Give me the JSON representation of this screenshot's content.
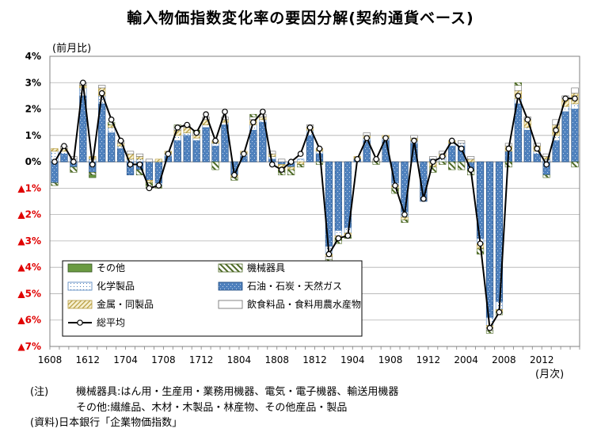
{
  "chart_data": {
    "type": "bar",
    "title": "輸入物価指数変化率の要因分解(契約通貨ベース)",
    "ylabel": "(前月比)",
    "xlabel": "(月次)",
    "ylim": [
      -7,
      4
    ],
    "y_ticks": [
      {
        "value": 4,
        "label": "4%",
        "color": "#000000"
      },
      {
        "value": 3,
        "label": "3%",
        "color": "#000000"
      },
      {
        "value": 2,
        "label": "2%",
        "color": "#000000"
      },
      {
        "value": 1,
        "label": "1%",
        "color": "#000000"
      },
      {
        "value": 0,
        "label": "0%",
        "color": "#000000"
      },
      {
        "value": -1,
        "label": "▲1%",
        "color": "#e00000"
      },
      {
        "value": -2,
        "label": "▲2%",
        "color": "#e00000"
      },
      {
        "value": -3,
        "label": "▲3%",
        "color": "#e00000"
      },
      {
        "value": -4,
        "label": "▲4%",
        "color": "#e00000"
      },
      {
        "value": -5,
        "label": "▲5%",
        "color": "#e00000"
      },
      {
        "value": -6,
        "label": "▲6%",
        "color": "#e00000"
      },
      {
        "value": -7,
        "label": "▲7%",
        "color": "#e00000"
      }
    ],
    "x_tick_labels": [
      {
        "index": 0,
        "label": "1608"
      },
      {
        "index": 4,
        "label": "1612"
      },
      {
        "index": 8,
        "label": "1704"
      },
      {
        "index": 12,
        "label": "1708"
      },
      {
        "index": 16,
        "label": "1712"
      },
      {
        "index": 20,
        "label": "1804"
      },
      {
        "index": 24,
        "label": "1808"
      },
      {
        "index": 28,
        "label": "1812"
      },
      {
        "index": 32,
        "label": "1904"
      },
      {
        "index": 36,
        "label": "1908"
      },
      {
        "index": 40,
        "label": "1912"
      },
      {
        "index": 44,
        "label": "2004"
      },
      {
        "index": 48,
        "label": "2008"
      },
      {
        "index": 52,
        "label": "2012"
      }
    ],
    "period_start": "2016-08",
    "grid": true,
    "legend": {
      "placement": "bottom-left",
      "items": [
        {
          "name": "その他",
          "series": "other"
        },
        {
          "name": "機械器具",
          "series": "machinery"
        },
        {
          "name": "化学製品",
          "series": "chemicals"
        },
        {
          "name": "石油・石炭・天然ガス",
          "series": "energy"
        },
        {
          "name": "金属・同製品",
          "series": "metals"
        },
        {
          "name": "飲食料品・食料用農水産物",
          "series": "food"
        },
        {
          "name": "総平均",
          "series": "total"
        }
      ]
    },
    "series_styles": {
      "energy": {
        "fill": "#4f81bd",
        "stroke": "#1f497d"
      },
      "chemicals": {
        "fill": "#ffffff",
        "stroke": "#4f81bd"
      },
      "metals": {
        "fill": "#f5edc8",
        "stroke": "#b59a3c"
      },
      "food": {
        "fill": "#ffffff",
        "stroke": "#666666"
      },
      "machinery": {
        "fill": "#d4dec0",
        "stroke": "#4e6a26"
      },
      "other": {
        "fill": "#6a9a42",
        "stroke": "#375623"
      },
      "total": {
        "line": "#000000",
        "marker_fill": "#ffffff"
      }
    },
    "series": [
      {
        "name": "石油・石炭・天然ガス",
        "key": "energy",
        "values": [
          -0.8,
          0.3,
          -0.2,
          2.5,
          -0.4,
          2.2,
          1.1,
          0.5,
          -0.5,
          -0.3,
          -0.7,
          -0.8,
          0.2,
          0.8,
          1.0,
          0.8,
          1.3,
          0.6,
          1.4,
          -0.5,
          0.2,
          1.2,
          1.5,
          0.1,
          -0.1,
          -0.2,
          0.0,
          1.0,
          0.3,
          -3.2,
          -2.6,
          -2.5,
          0.1,
          0.8,
          0.0,
          0.8,
          -0.8,
          -1.9,
          0.7,
          -1.5,
          0.1,
          0.0,
          0.6,
          0.6,
          -0.3,
          -2.9,
          -5.9,
          -5.3,
          0.4,
          2.2,
          1.2,
          0.3,
          -0.5,
          0.8,
          1.9,
          2.0
        ]
      },
      {
        "name": "化学製品",
        "key": "chemicals",
        "values": [
          0.4,
          0.1,
          0.1,
          0.3,
          0.1,
          0.3,
          0.2,
          0.1,
          0.1,
          0.1,
          0.0,
          -0.1,
          0.1,
          0.2,
          0.1,
          0.1,
          0.1,
          0.1,
          0.1,
          0.0,
          0.1,
          0.2,
          0.1,
          0.1,
          0.0,
          0.0,
          0.1,
          0.2,
          0.1,
          -0.3,
          -0.2,
          -0.2,
          0.0,
          0.1,
          0.0,
          0.1,
          -0.1,
          -0.2,
          0.1,
          0.0,
          0.0,
          0.2,
          0.1,
          0.1,
          0.0,
          -0.2,
          -0.3,
          -0.3,
          0.0,
          0.2,
          0.1,
          0.1,
          0.1,
          0.2,
          0.2,
          0.2
        ]
      },
      {
        "name": "金属・同製品",
        "key": "metals",
        "values": [
          0.1,
          0.1,
          0.0,
          0.1,
          0.1,
          0.3,
          0.1,
          0.1,
          0.2,
          0.1,
          -0.1,
          0.1,
          0.1,
          0.2,
          0.2,
          0.1,
          0.2,
          0.1,
          0.1,
          -0.1,
          0.1,
          0.2,
          0.1,
          0.1,
          -0.2,
          -0.1,
          -0.1,
          0.1,
          0.1,
          -0.1,
          -0.1,
          -0.1,
          0.1,
          0.1,
          0.0,
          0.1,
          -0.1,
          -0.1,
          0.1,
          0.0,
          -0.2,
          0.1,
          0.1,
          0.0,
          0.1,
          -0.2,
          -0.1,
          -0.1,
          0.2,
          0.3,
          0.3,
          0.2,
          0.1,
          0.4,
          0.3,
          0.4
        ]
      },
      {
        "name": "飲食料品・食料用農水産物",
        "key": "food",
        "values": [
          0.0,
          0.1,
          0.1,
          0.1,
          0.0,
          0.1,
          0.0,
          0.1,
          0.1,
          0.1,
          0.1,
          0.0,
          0.0,
          0.1,
          0.1,
          0.1,
          0.1,
          0.0,
          0.1,
          0.0,
          0.0,
          0.1,
          0.1,
          0.1,
          0.1,
          0.0,
          0.0,
          0.1,
          0.0,
          -0.1,
          0.0,
          0.0,
          0.0,
          0.1,
          0.1,
          0.0,
          0.0,
          0.0,
          0.1,
          0.0,
          0.1,
          0.1,
          0.0,
          0.1,
          0.1,
          0.0,
          -0.1,
          0.0,
          0.1,
          0.2,
          0.1,
          0.1,
          0.1,
          0.2,
          0.1,
          0.2
        ]
      },
      {
        "name": "機械器具",
        "key": "machinery",
        "values": [
          -0.1,
          0.0,
          -0.2,
          0.0,
          -0.1,
          0.0,
          0.1,
          0.0,
          0.0,
          -0.2,
          -0.2,
          -0.1,
          0.0,
          0.1,
          0.0,
          0.1,
          0.0,
          -0.3,
          0.0,
          -0.1,
          0.0,
          0.1,
          0.0,
          0.0,
          -0.2,
          -0.2,
          -0.1,
          0.0,
          -0.1,
          -0.1,
          -0.2,
          -0.1,
          0.0,
          0.0,
          -0.1,
          0.0,
          -0.2,
          -0.1,
          0.0,
          0.0,
          -0.2,
          -0.1,
          -0.3,
          -0.3,
          -0.2,
          -0.2,
          -0.1,
          -0.1,
          -0.2,
          0.1,
          0.0,
          0.0,
          -0.1,
          0.0,
          0.0,
          -0.2
        ]
      },
      {
        "name": "その他",
        "key": "other",
        "values": [
          0.0,
          0.0,
          0.0,
          0.0,
          -0.1,
          0.0,
          0.0,
          0.0,
          0.0,
          0.0,
          0.0,
          0.0,
          0.0,
          0.0,
          0.0,
          0.0,
          0.0,
          0.0,
          0.0,
          0.0,
          0.0,
          0.0,
          0.0,
          0.0,
          0.0,
          0.0,
          0.0,
          0.0,
          0.0,
          0.0,
          0.0,
          0.0,
          0.0,
          0.0,
          0.0,
          0.0,
          0.0,
          0.0,
          0.0,
          0.0,
          0.0,
          0.0,
          0.0,
          0.0,
          0.0,
          0.0,
          0.0,
          0.0,
          0.0,
          0.0,
          0.0,
          0.0,
          0.0,
          0.0,
          0.0,
          0.0
        ]
      },
      {
        "name": "総平均",
        "key": "total",
        "values": [
          0.0,
          0.6,
          0.0,
          3.0,
          -0.1,
          2.6,
          1.6,
          0.8,
          -0.1,
          -0.1,
          -1.0,
          -0.9,
          0.3,
          1.3,
          1.4,
          1.1,
          1.8,
          0.8,
          1.9,
          -0.5,
          0.3,
          1.5,
          1.9,
          -0.1,
          -0.3,
          0.0,
          0.3,
          1.3,
          0.5,
          -3.5,
          -2.9,
          -2.8,
          0.1,
          0.9,
          0.1,
          0.9,
          -0.9,
          -2.0,
          0.8,
          -1.4,
          0.0,
          0.2,
          0.8,
          0.5,
          -0.3,
          -3.1,
          -6.3,
          -5.7,
          0.5,
          2.5,
          1.6,
          0.5,
          -0.1,
          1.2,
          2.4,
          2.4
        ]
      }
    ]
  },
  "notes": {
    "label": "(注)",
    "line1": "機械器具:はん用・生産用・業務用機器、電気・電子機器、輸送用機器",
    "line2": "その他:繊維品、木材・木製品・林産物、その他産品・製品",
    "source": "(資料)日本銀行「企業物価指数」"
  }
}
